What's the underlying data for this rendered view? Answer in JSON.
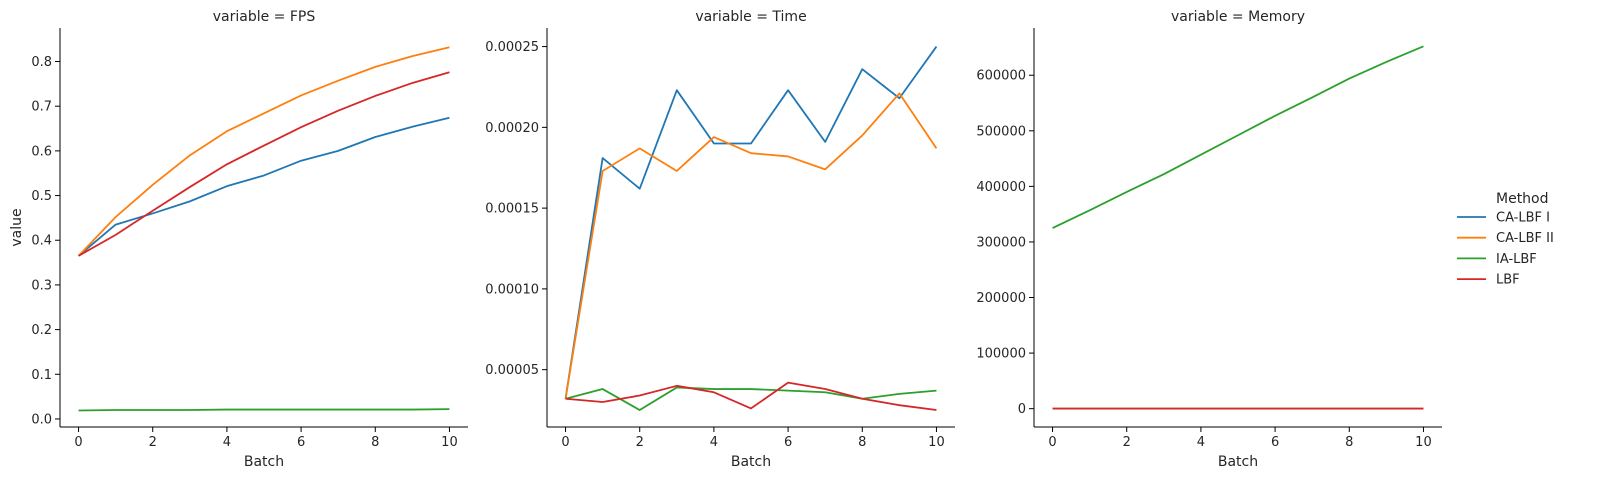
{
  "chart_data": [
    {
      "type": "line",
      "title": "variable = FPS",
      "xlabel": "Batch",
      "ylabel": "value",
      "x": [
        0,
        1,
        2,
        3,
        4,
        5,
        6,
        7,
        8,
        9,
        10
      ],
      "xticks": [
        "0",
        "2",
        "4",
        "6",
        "8",
        "10"
      ],
      "xtick_values": [
        0,
        2,
        4,
        6,
        8,
        10
      ],
      "yticks": [
        "0.0",
        "0.1",
        "0.2",
        "0.3",
        "0.4",
        "0.5",
        "0.6",
        "0.7",
        "0.8"
      ],
      "ytick_values": [
        0,
        0.1,
        0.2,
        0.3,
        0.4,
        0.5,
        0.6,
        0.7,
        0.8
      ],
      "xlim": [
        -0.5,
        10.5
      ],
      "ylim": [
        -0.018,
        0.875
      ],
      "series": [
        {
          "name": "CA-LBF I",
          "color": "#1f77b4",
          "values": [
            0.365,
            0.435,
            0.46,
            0.487,
            0.521,
            0.545,
            0.578,
            0.6,
            0.631,
            0.654,
            0.674
          ]
        },
        {
          "name": "CA-LBF II",
          "color": "#ff7f0e",
          "values": [
            0.365,
            0.452,
            0.524,
            0.59,
            0.644,
            0.684,
            0.724,
            0.757,
            0.788,
            0.812,
            0.832
          ]
        },
        {
          "name": "IA-LBF",
          "color": "#2ca02c",
          "values": [
            0.019,
            0.02,
            0.02,
            0.02,
            0.021,
            0.021,
            0.021,
            0.021,
            0.021,
            0.021,
            0.022
          ]
        },
        {
          "name": "LBF",
          "color": "#d62728",
          "values": [
            0.365,
            0.412,
            0.466,
            0.519,
            0.57,
            0.612,
            0.653,
            0.69,
            0.723,
            0.752,
            0.776
          ]
        }
      ]
    },
    {
      "type": "line",
      "title": "variable = Time",
      "xlabel": "Batch",
      "ylabel": "",
      "x": [
        0,
        1,
        2,
        3,
        4,
        5,
        6,
        7,
        8,
        9,
        10
      ],
      "xticks": [
        "0",
        "2",
        "4",
        "6",
        "8",
        "10"
      ],
      "xtick_values": [
        0,
        2,
        4,
        6,
        8,
        10
      ],
      "yticks": [
        "0.00005",
        "0.00010",
        "0.00015",
        "0.00020",
        "0.00025"
      ],
      "ytick_values": [
        5e-05,
        0.0001,
        0.00015,
        0.0002,
        0.00025
      ],
      "xlim": [
        -0.5,
        10.5
      ],
      "ylim": [
        1.45e-05,
        0.0002615
      ],
      "series": [
        {
          "name": "CA-LBF I",
          "color": "#1f77b4",
          "values": [
            3.2e-05,
            0.000181,
            0.000162,
            0.000223,
            0.00019,
            0.00019,
            0.000223,
            0.000191,
            0.000236,
            0.000218,
            0.00025
          ]
        },
        {
          "name": "CA-LBF II",
          "color": "#ff7f0e",
          "values": [
            3.2e-05,
            0.000173,
            0.000187,
            0.000173,
            0.000194,
            0.000184,
            0.000182,
            0.000174,
            0.000195,
            0.000221,
            0.000187
          ]
        },
        {
          "name": "IA-LBF",
          "color": "#2ca02c",
          "values": [
            3.2e-05,
            3.8e-05,
            2.5e-05,
            3.9e-05,
            3.8e-05,
            3.8e-05,
            3.7e-05,
            3.6e-05,
            3.2e-05,
            3.5e-05,
            3.7e-05
          ]
        },
        {
          "name": "LBF",
          "color": "#d62728",
          "values": [
            3.2e-05,
            3e-05,
            3.4e-05,
            4e-05,
            3.6e-05,
            2.6e-05,
            4.2e-05,
            3.8e-05,
            3.2e-05,
            2.8e-05,
            2.5e-05
          ]
        }
      ]
    },
    {
      "type": "line",
      "title": "variable = Memory",
      "xlabel": "Batch",
      "ylabel": "",
      "x": [
        0,
        1,
        2,
        3,
        4,
        5,
        6,
        7,
        8,
        9,
        10
      ],
      "xticks": [
        "0",
        "2",
        "4",
        "6",
        "8",
        "10"
      ],
      "xtick_values": [
        0,
        2,
        4,
        6,
        8,
        10
      ],
      "yticks": [
        "0",
        "100000",
        "200000",
        "300000",
        "400000",
        "500000",
        "600000"
      ],
      "ytick_values": [
        0,
        100000,
        200000,
        300000,
        400000,
        500000,
        600000
      ],
      "xlim": [
        -0.5,
        10.5
      ],
      "ylim": [
        -33000,
        685000
      ],
      "series": [
        {
          "name": "CA-LBF I",
          "color": "#1f77b4",
          "values": [
            0,
            0,
            0,
            0,
            0,
            0,
            0,
            0,
            0,
            0,
            0
          ]
        },
        {
          "name": "CA-LBF II",
          "color": "#ff7f0e",
          "values": [
            0,
            0,
            0,
            0,
            0,
            0,
            0,
            0,
            0,
            0,
            0
          ]
        },
        {
          "name": "IA-LBF",
          "color": "#2ca02c",
          "values": [
            325000,
            357000,
            390000,
            422000,
            457000,
            492000,
            527000,
            560000,
            594000,
            624000,
            652000
          ]
        },
        {
          "name": "LBF",
          "color": "#d62728",
          "values": [
            0,
            0,
            0,
            0,
            0,
            0,
            0,
            0,
            0,
            0,
            0
          ]
        }
      ]
    }
  ],
  "legend": {
    "title": "Method",
    "placement": "right",
    "entries": [
      {
        "label": "CA-LBF I",
        "color": "#1f77b4"
      },
      {
        "label": "CA-LBF II",
        "color": "#ff7f0e"
      },
      {
        "label": "IA-LBF",
        "color": "#2ca02c"
      },
      {
        "label": "LBF",
        "color": "#d62728"
      }
    ]
  }
}
